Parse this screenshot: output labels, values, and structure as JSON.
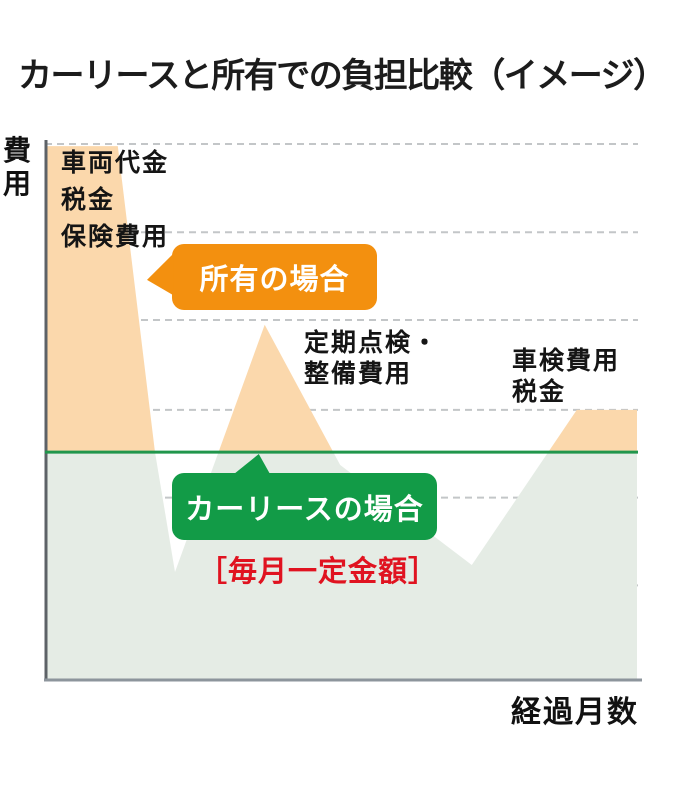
{
  "title": "カーリースと所有での負担比較（イメージ）",
  "axes": {
    "y_label": "費用",
    "x_label": "経過月数"
  },
  "labels": {
    "ownership_initial": [
      "車両代金",
      "税金",
      "保険費用"
    ],
    "maintenance": [
      "定期点検・",
      "整備費用"
    ],
    "inspection": [
      "車検費用",
      "税金"
    ]
  },
  "badges": {
    "ownership": "所有の場合",
    "lease": "カーリースの場合"
  },
  "lease_note": "［毎月一定金額］",
  "colors": {
    "ownership_area": "#fbd8ac",
    "ownership_area_below_lease_line": "#e5ece5",
    "ownership_badge": "#f3900f",
    "lease_badge": "#129b47",
    "lease_line": "#21964c",
    "note_red": "#e01320",
    "grid": "#c3c6c8",
    "axis_left": "#5d6267",
    "axis_bottom": "#8d959c",
    "text": "#1d1d1d"
  },
  "chart_data": {
    "type": "area",
    "title": "カーリースと所有での負担比較（イメージ）",
    "xlabel": "経過月数",
    "ylabel": "費用",
    "axis_note": "conceptual image chart — no numeric tick labels shown; values are relative (0–100)",
    "grid": "horizontal dashed gridlines only",
    "legend_position": "in-plot speech-bubble badges",
    "xlim": [
      0,
      100
    ],
    "ylim": [
      0,
      100
    ],
    "grid_levels": [
      100,
      83.5,
      67.1,
      50.3,
      33.9,
      17.5
    ],
    "series": [
      {
        "name": "所有の場合",
        "type": "area",
        "points": [
          [
            0,
            99.6
          ],
          [
            12,
            99.6
          ],
          [
            18.3,
            42.4
          ],
          [
            21.7,
            20
          ],
          [
            36.9,
            66.2
          ],
          [
            49.7,
            40
          ],
          [
            72,
            21.3
          ],
          [
            89.8,
            50.3
          ],
          [
            100,
            50.3
          ]
        ],
        "peaks": [
          "車両代金・税金・保険費用 (start)",
          "定期点検・整備費用 (mid)",
          "車検費用・税金 (right)"
        ]
      },
      {
        "name": "カーリースの場合",
        "type": "line",
        "constant_value": 42.4,
        "note": "毎月一定金額"
      }
    ]
  }
}
